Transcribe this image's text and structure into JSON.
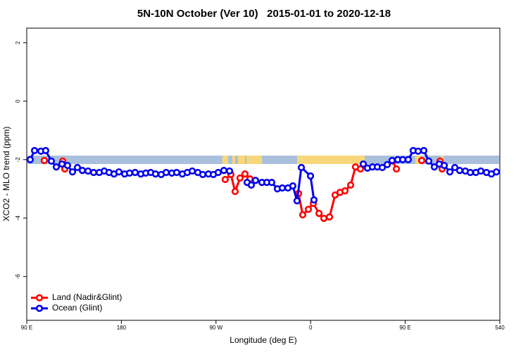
{
  "chart_data": {
    "type": "line",
    "title": "5N-10N October (Ver 10)   2015-01-01 to 2020-12-18",
    "x_label": "Longitude (deg E)",
    "y_label": "XCO2 - MLO trend (ppm)",
    "xlim": [
      90,
      540
    ],
    "xticks": [
      {
        "value": 90,
        "label": "90 E"
      },
      180,
      {
        "value": 270,
        "label": "90 W"
      },
      {
        "value": 360,
        "label": "0"
      },
      {
        "value": 450,
        "label": "90 E"
      },
      540
    ],
    "ylim": [
      -7.5,
      2.5
    ],
    "yticks": [
      2,
      0,
      -2,
      -4,
      -6
    ],
    "legend_position": "bottom-left",
    "series": [
      {
        "name": "Land (Nadir&Glint)",
        "color": "#ff0000",
        "x": [
          106.7,
          null,
          124.2,
          126.2,
          null,
          278.8,
          284.2,
          288.2,
          292.9,
          297.6,
          302.3,
          null,
          348.5,
          352.5,
          357.9,
          362.6,
          368,
          372.6,
          378,
          383.3,
          388,
          392.7,
          398.1,
          402.7,
          407.4,
          null,
          438.2,
          441.6,
          null,
          465.7,
          null,
          483.1,
          485.1
        ],
        "values": [
          -2.03,
          null,
          -2.05,
          -2.32,
          null,
          -2.68,
          -2.51,
          -3.09,
          -2.63,
          -2.49,
          -2.66,
          null,
          -3.16,
          -3.89,
          -3.7,
          -3.5,
          -3.84,
          -4.01,
          -3.96,
          -3.21,
          -3.12,
          -3.07,
          -2.87,
          -2.25,
          -2.32,
          null,
          -2.05,
          -2.32,
          null,
          -2.03,
          null,
          -2.05,
          -2.32
        ]
      },
      {
        "name": "Ocean (Glint)",
        "color": "#0000ee",
        "x": [
          93.3,
          97.4,
          103.4,
          108,
          113.4,
          118.1,
          123.5,
          128.8,
          133.5,
          138.2,
          142.9,
          148.3,
          153.6,
          159,
          163.7,
          168.3,
          173,
          177.7,
          183.1,
          187.8,
          193.1,
          198.5,
          203.2,
          207.9,
          212.5,
          217.9,
          222.6,
          228,
          232.6,
          238,
          242.7,
          247.4,
          252.7,
          257.4,
          262.8,
          267.5,
          272.1,
          277.5,
          282.9,
          null,
          299.6,
          303.6,
          307.6,
          313.7,
          318.4,
          323,
          328.4,
          333.1,
          338.4,
          343.1,
          347.1,
          351.2,
          359.9,
          363.2,
          null,
          410.1,
          414.1,
          418.8,
          423.5,
          428.2,
          432.9,
          437.5,
          442.9,
          447.6,
          452.9,
          457.6,
          462.3,
          467.7,
          472.4,
          477.7,
          482.4,
          487.1,
          492.5,
          497.2,
          501.8,
          507.2,
          511.9,
          517.2,
          521.9,
          527.3,
          532,
          536.7
        ],
        "values": [
          -2.0,
          -1.69,
          -1.71,
          -1.69,
          -2.05,
          -2.25,
          -2.15,
          -2.2,
          -2.42,
          -2.27,
          -2.37,
          -2.39,
          -2.44,
          -2.44,
          -2.39,
          -2.44,
          -2.49,
          -2.42,
          -2.49,
          -2.46,
          -2.44,
          -2.49,
          -2.46,
          -2.44,
          -2.49,
          -2.51,
          -2.44,
          -2.46,
          -2.44,
          -2.49,
          -2.44,
          -2.39,
          -2.44,
          -2.51,
          -2.49,
          -2.51,
          -2.44,
          -2.37,
          -2.39,
          null,
          -2.78,
          -2.87,
          -2.71,
          -2.78,
          -2.78,
          -2.78,
          -3.0,
          -2.97,
          -2.97,
          -2.9,
          -3.41,
          -2.27,
          -2.56,
          -3.38,
          null,
          -2.15,
          -2.29,
          -2.25,
          -2.25,
          -2.27,
          -2.17,
          -2.03,
          -2.0,
          -2.0,
          -2.0,
          -1.69,
          -1.71,
          -1.69,
          -2.05,
          -2.25,
          -2.15,
          -2.2,
          -2.42,
          -2.27,
          -2.37,
          -2.39,
          -2.44,
          -2.44,
          -2.39,
          -2.44,
          -2.49,
          -2.42
        ]
      }
    ]
  }
}
